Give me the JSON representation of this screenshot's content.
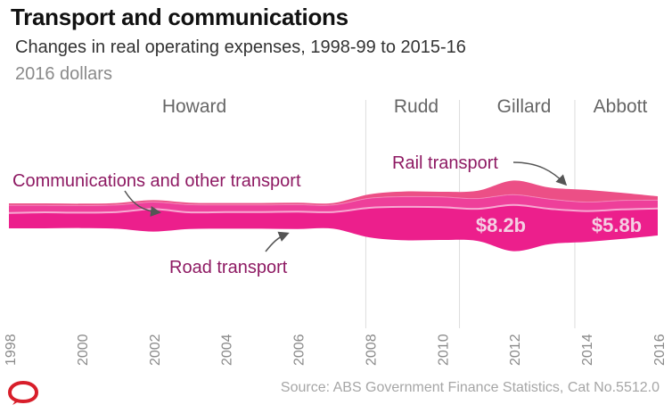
{
  "title": "Transport and communications",
  "subtitle": "Changes in real operating expenses, 1998-99 to 2015-16",
  "unit_label": "2016 dollars",
  "source": "Source: ABS Government Finance Statistics, Cat No.5512.0",
  "logo": {
    "name": "The Conversation",
    "icon": "speech-bubble-logo"
  },
  "colors": {
    "road": "#ec1f8c",
    "communications": "#ee3f9a",
    "rail": "#ec4f86",
    "divider_line": "#f7a9d2",
    "era_line": "#dcdcdc",
    "label_text": "#8e1a63"
  },
  "chart_data": {
    "type": "area",
    "title": "Transport and communications",
    "subtitle": "Changes in real operating expenses, 1998-99 to 2015-16",
    "xlabel": "",
    "ylabel": "",
    "grid": false,
    "legend": "inline",
    "xlim": [
      1998,
      2016
    ],
    "x_ticks": [
      "1998",
      "2000",
      "2002",
      "2004",
      "2006",
      "2008",
      "2010",
      "2012",
      "2014",
      "2016"
    ],
    "eras": [
      {
        "name": "Howard",
        "start": 1998,
        "end": 2007.9
      },
      {
        "name": "Rudd",
        "start": 2007.9,
        "end": 2010.5
      },
      {
        "name": "Gillard",
        "start": 2010.5,
        "end": 2013.7
      },
      {
        "name": "Abbott",
        "start": 2013.7,
        "end": 2016
      }
    ],
    "x": [
      1998,
      1999,
      2000,
      2001,
      2002,
      2003,
      2004,
      2005,
      2006,
      2007,
      2008,
      2009,
      2010,
      2011,
      2012,
      2013,
      2014,
      2015,
      2016
    ],
    "series": [
      {
        "name": "Road transport",
        "values": [
          2.4,
          2.5,
          2.4,
          2.6,
          3.5,
          2.6,
          2.6,
          2.6,
          2.7,
          2.6,
          4.6,
          5.2,
          5.1,
          5.0,
          7.2,
          5.5,
          4.8,
          4.6,
          4.2
        ]
      },
      {
        "name": "Communications and other transport",
        "values": [
          1.2,
          1.1,
          1.1,
          1.1,
          1.1,
          1.2,
          1.1,
          1.1,
          1.1,
          1.1,
          1.5,
          1.6,
          1.6,
          1.6,
          1.6,
          1.5,
          1.4,
          1.4,
          1.3
        ]
      },
      {
        "name": "Rail transport",
        "values": [
          0.3,
          0.3,
          0.3,
          0.3,
          0.3,
          0.3,
          0.3,
          0.3,
          0.3,
          0.3,
          0.6,
          0.8,
          0.8,
          1.2,
          2.2,
          1.8,
          1.9,
          1.2,
          0.6
        ]
      }
    ],
    "annotations": [
      {
        "text": "Communications and other transport",
        "series": "Communications and other transport"
      },
      {
        "text": "Road transport",
        "series": "Road transport"
      },
      {
        "text": "Rail transport",
        "series": "Rail transport"
      },
      {
        "text": "$8.2b",
        "x": 2012,
        "value": 8.2
      },
      {
        "text": "$5.8b",
        "x": 2015,
        "value": 5.8
      }
    ]
  }
}
